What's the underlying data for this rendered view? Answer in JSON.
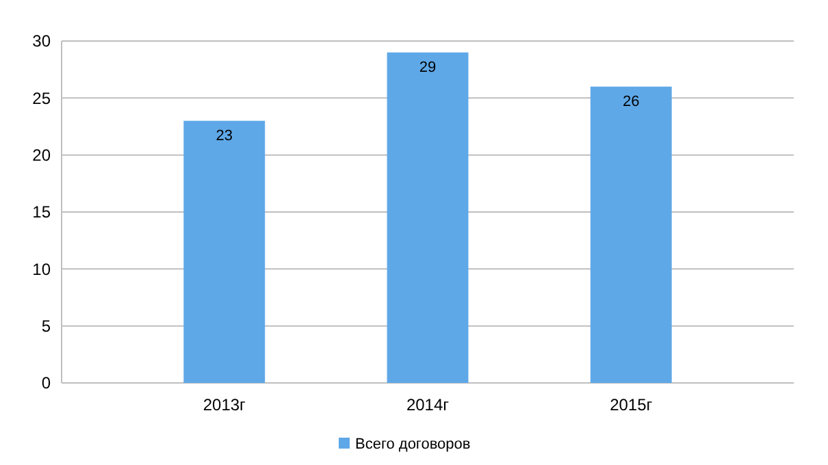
{
  "chart_data": {
    "type": "bar",
    "categories": [
      "2013г",
      "2014г",
      "2015г"
    ],
    "series": [
      {
        "name": "Всего договоров",
        "color": "#5fa8e8",
        "values": [
          23,
          29,
          26
        ]
      }
    ],
    "ylim": [
      0,
      30
    ],
    "yticks": [
      0,
      5,
      10,
      15,
      20,
      25,
      30
    ],
    "grid": "y",
    "legend": "bottom",
    "data_labels": true
  }
}
